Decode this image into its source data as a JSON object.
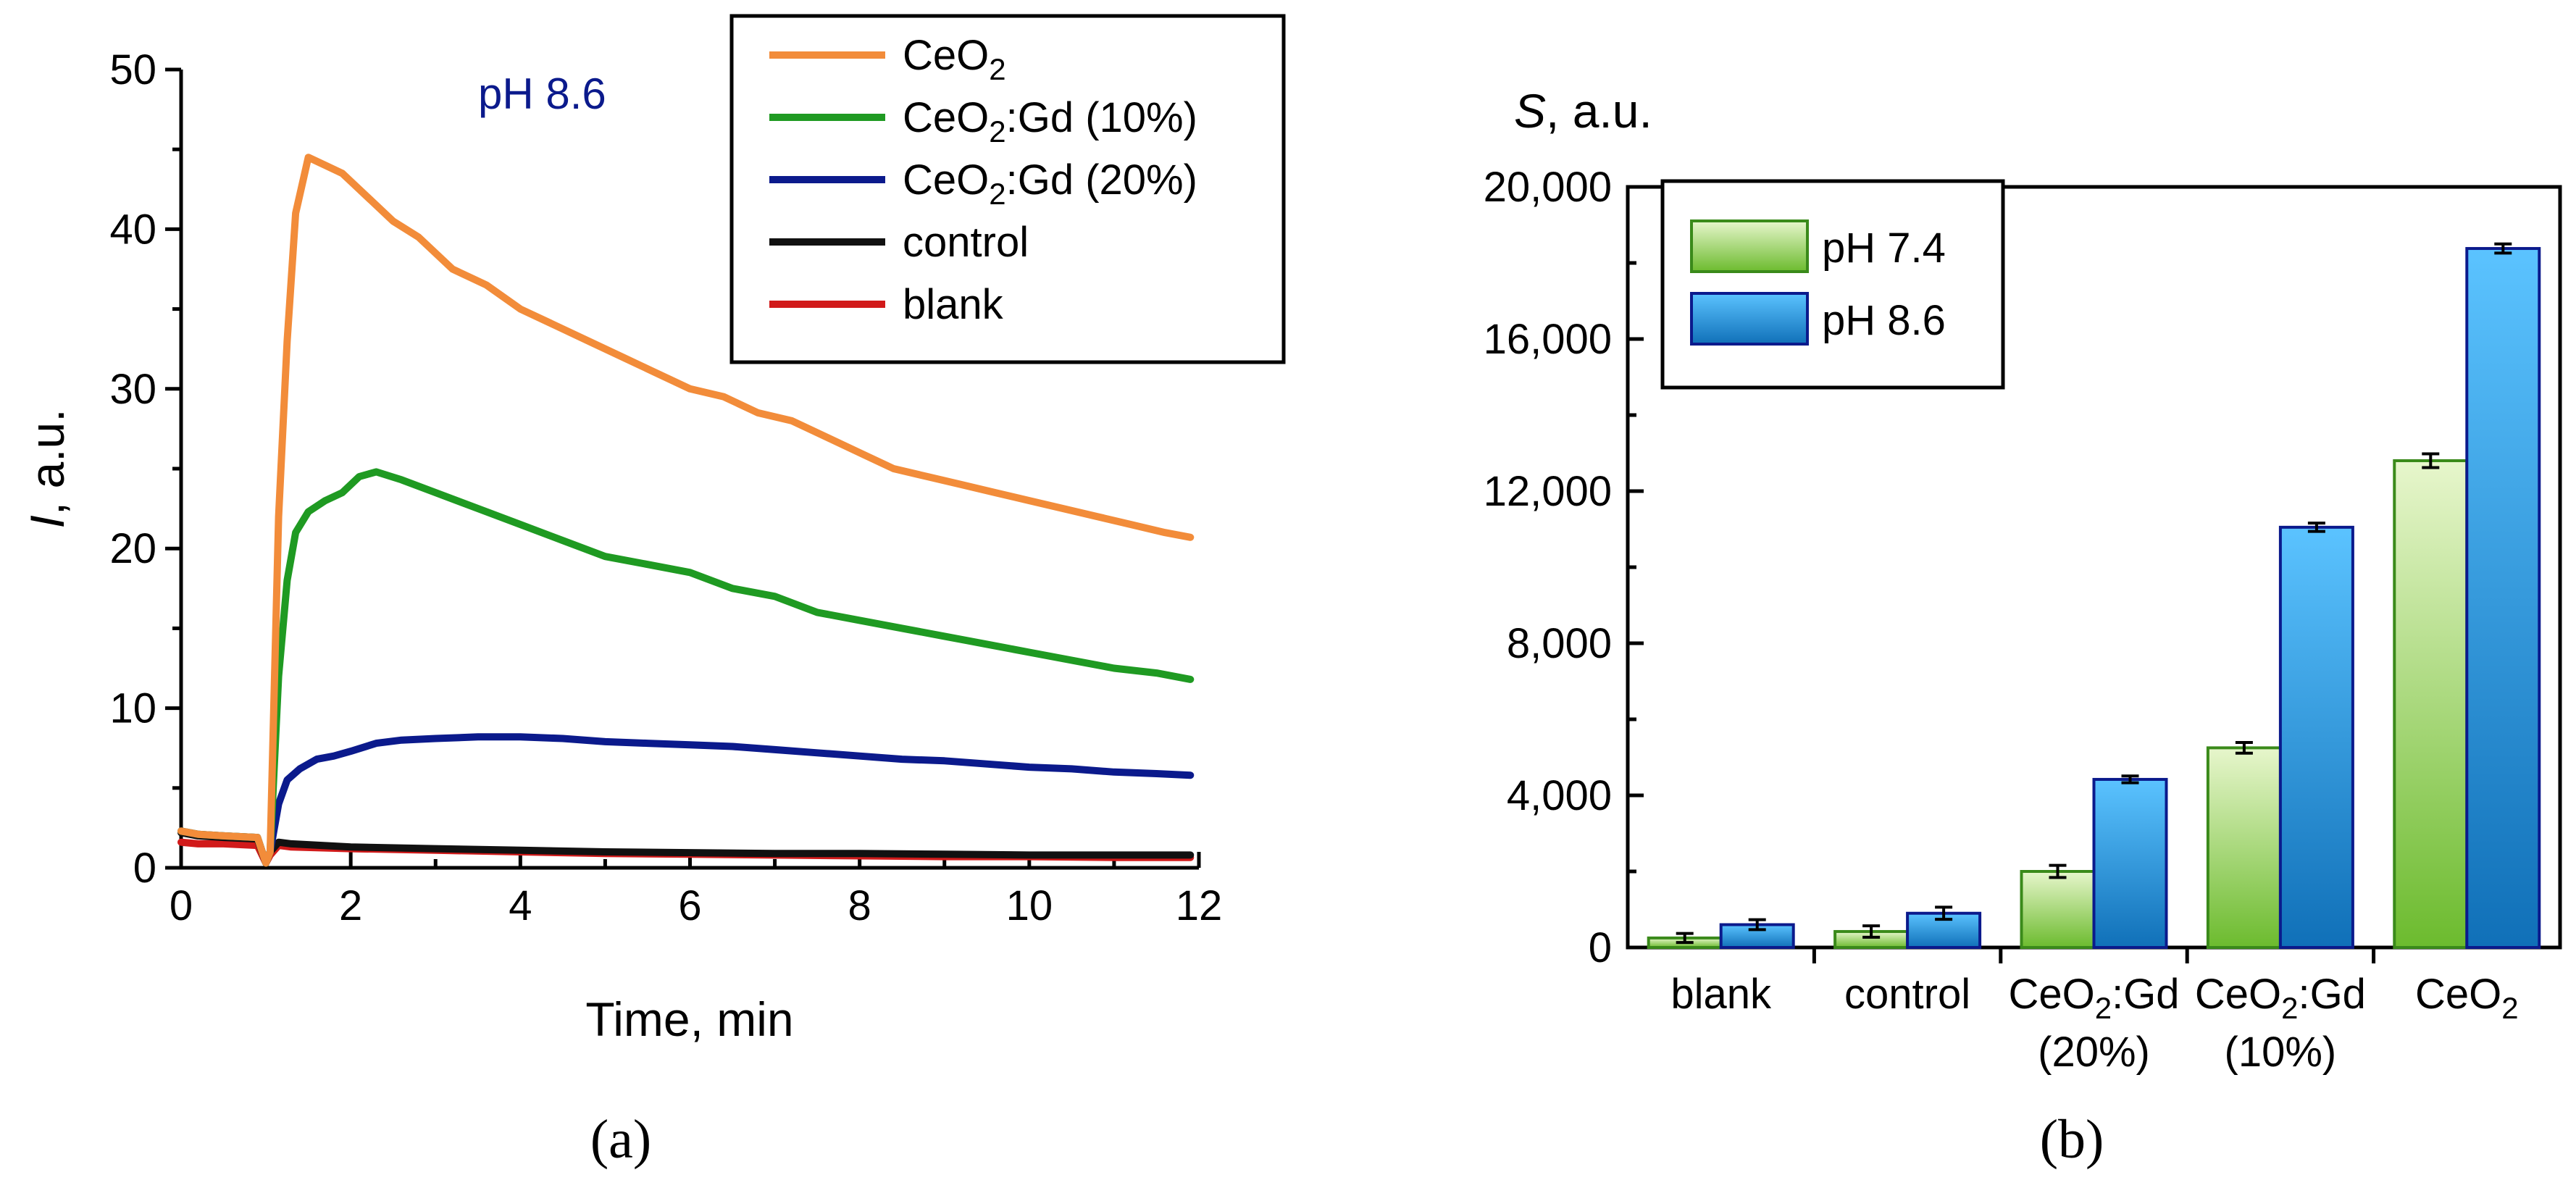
{
  "chart_data": [
    {
      "panel": "(a)",
      "type": "line",
      "annotation": "pH 8.6",
      "xlabel": "Time, min",
      "ylabel_italic": "I",
      "ylabel_rest": ", a.u.",
      "xlim": [
        0,
        12
      ],
      "ylim": [
        0,
        50
      ],
      "xticks": [
        "0",
        "2",
        "4",
        "6",
        "8",
        "10",
        "12"
      ],
      "yticks": [
        "0",
        "10",
        "20",
        "30",
        "40",
        "50"
      ],
      "legend_position": "top-right",
      "series": [
        {
          "name": "CeO",
          "sub": "2",
          "tail": "",
          "color": "#f28c3a",
          "x": [
            0,
            0.2,
            0.5,
            0.9,
            1.0,
            1.05,
            1.15,
            1.25,
            1.35,
            1.5,
            1.7,
            1.9,
            2.2,
            2.5,
            2.8,
            3.2,
            3.6,
            4.0,
            4.4,
            4.8,
            5.2,
            5.6,
            6.0,
            6.4,
            6.8,
            7.2,
            7.6,
            8.0,
            8.4,
            8.8,
            9.2,
            9.6,
            10.0,
            10.4,
            10.8,
            11.2,
            11.6,
            11.9
          ],
          "y": [
            2.3,
            2.1,
            2.0,
            1.9,
            0.3,
            1.0,
            22,
            33,
            41,
            44.5,
            44,
            43.5,
            42,
            40.5,
            39.5,
            37.5,
            36.5,
            35,
            34,
            33,
            32,
            31,
            30,
            29.5,
            28.5,
            28,
            27,
            26,
            25,
            24.5,
            24,
            23.5,
            23,
            22.5,
            22,
            21.5,
            21,
            20.7
          ]
        },
        {
          "name": "CeO",
          "sub": "2",
          "tail": ":Gd (10%)",
          "color": "#1f9a22",
          "x": [
            0,
            0.2,
            0.5,
            0.9,
            1.0,
            1.05,
            1.15,
            1.25,
            1.35,
            1.5,
            1.7,
            1.9,
            2.1,
            2.3,
            2.6,
            3.0,
            3.5,
            4.0,
            4.5,
            5.0,
            5.5,
            6.0,
            6.5,
            7.0,
            7.5,
            8.0,
            8.5,
            9.0,
            9.5,
            10.0,
            10.5,
            11.0,
            11.5,
            11.9
          ],
          "y": [
            2.3,
            2.1,
            2.0,
            1.9,
            0.3,
            1.0,
            12,
            18,
            21,
            22.3,
            23,
            23.5,
            24.5,
            24.8,
            24.3,
            23.5,
            22.5,
            21.5,
            20.5,
            19.5,
            19,
            18.5,
            17.5,
            17,
            16,
            15.5,
            15,
            14.5,
            14,
            13.5,
            13,
            12.5,
            12.2,
            11.8
          ]
        },
        {
          "name": "CeO",
          "sub": "2",
          "tail": ":Gd (20%)",
          "color": "#0b1a8c",
          "x": [
            0,
            0.2,
            0.5,
            0.9,
            1.0,
            1.05,
            1.15,
            1.25,
            1.4,
            1.6,
            1.8,
            2.0,
            2.3,
            2.6,
            3.0,
            3.5,
            4.0,
            4.5,
            5.0,
            5.5,
            6.0,
            6.5,
            7.0,
            7.5,
            8.0,
            8.5,
            9.0,
            9.5,
            10.0,
            10.5,
            11.0,
            11.5,
            11.9
          ],
          "y": [
            2.3,
            2.1,
            2.0,
            1.9,
            0.3,
            1.0,
            4.0,
            5.5,
            6.2,
            6.8,
            7.0,
            7.3,
            7.8,
            8.0,
            8.1,
            8.2,
            8.2,
            8.1,
            7.9,
            7.8,
            7.7,
            7.6,
            7.4,
            7.2,
            7.0,
            6.8,
            6.7,
            6.5,
            6.3,
            6.2,
            6.0,
            5.9,
            5.8
          ]
        },
        {
          "name": "control",
          "sub": "",
          "tail": "",
          "color": "#111111",
          "x": [
            0,
            0.2,
            0.5,
            0.9,
            1.0,
            1.05,
            1.15,
            1.3,
            2,
            3,
            4,
            5,
            6,
            7,
            8,
            9,
            10,
            11,
            11.9
          ],
          "y": [
            2.2,
            2.0,
            1.9,
            1.8,
            0.3,
            1.0,
            1.6,
            1.5,
            1.3,
            1.2,
            1.1,
            1.0,
            0.95,
            0.9,
            0.9,
            0.85,
            0.8,
            0.8,
            0.8
          ]
        },
        {
          "name": "blank",
          "sub": "",
          "tail": "",
          "color": "#d11a1a",
          "x": [
            0,
            0.2,
            0.5,
            0.9,
            1.0,
            1.05,
            1.15,
            1.3,
            2,
            3,
            4,
            5,
            6,
            7,
            8,
            9,
            10,
            11,
            11.9
          ],
          "y": [
            1.6,
            1.5,
            1.5,
            1.4,
            0.3,
            0.8,
            1.4,
            1.3,
            1.2,
            1.1,
            1.0,
            0.9,
            0.85,
            0.8,
            0.75,
            0.7,
            0.7,
            0.65,
            0.65
          ]
        }
      ]
    },
    {
      "panel": "(b)",
      "type": "bar",
      "ylabel_italic": "S",
      "ylabel_rest": ", a.u.",
      "ylim": [
        0,
        20000
      ],
      "yticks": [
        "0",
        "4,000",
        "8,000",
        "12,000",
        "16,000",
        "20,000"
      ],
      "legend_position": "top-left",
      "categories": [
        {
          "l1": "blank",
          "l1sub": "",
          "l1tail": "",
          "l2": ""
        },
        {
          "l1": "control",
          "l1sub": "",
          "l1tail": "",
          "l2": ""
        },
        {
          "l1": "CeO",
          "l1sub": "2",
          "l1tail": ":Gd",
          "l2": "(20%)"
        },
        {
          "l1": "CeO",
          "l1sub": "2",
          "l1tail": ":Gd",
          "l2": "(10%)"
        },
        {
          "l1": "CeO",
          "l1sub": "2",
          "l1tail": "",
          "l2": ""
        }
      ],
      "series": [
        {
          "name": "pH 7.4",
          "top_color": "#e7f6cc",
          "bottom_color": "#6cbb2e",
          "edge": "#3a8a1a",
          "values": [
            250,
            420,
            2000,
            5250,
            12800
          ],
          "errors": [
            120,
            150,
            160,
            140,
            180
          ]
        },
        {
          "name": "pH 8.6",
          "top_color": "#5bc3ff",
          "bottom_color": "#1070b8",
          "edge": "#0b1a8c",
          "values": [
            600,
            900,
            4420,
            11050,
            18380
          ],
          "errors": [
            130,
            160,
            90,
            110,
            120
          ]
        }
      ]
    }
  ]
}
